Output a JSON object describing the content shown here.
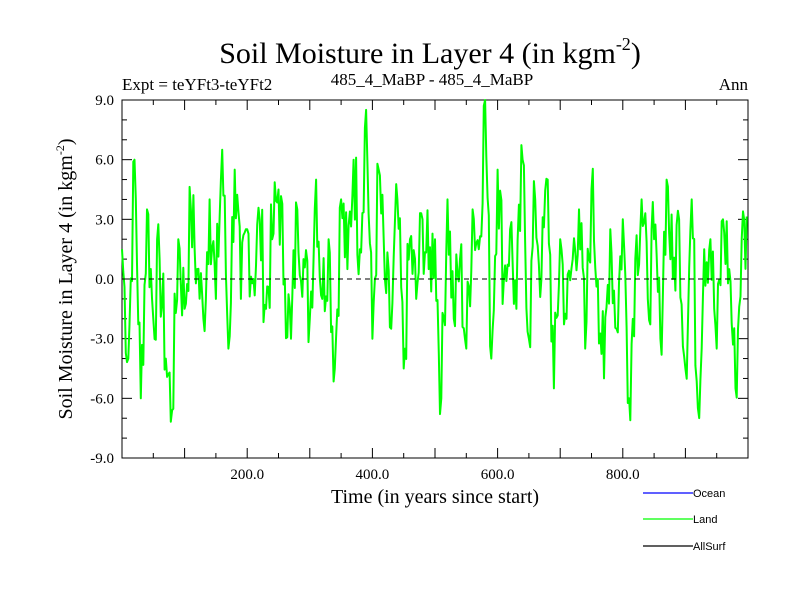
{
  "chart_data": {
    "type": "line",
    "title": "Soil Moisture in Layer 4 (in kgm",
    "title_superscript": "-2",
    "title_close": ")",
    "subtitle_left": "Expt = teYFt3-teYFt2",
    "subtitle_center": "485_4_MaBP - 485_4_MaBP",
    "subtitle_right": "Ann",
    "xlabel": "Time (in years since start)",
    "ylabel": "Soil Moisture in Layer 4 (in kgm",
    "ylabel_superscript": "-2",
    "ylabel_close": ")",
    "xlim": [
      0,
      1000
    ],
    "ylim": [
      -9,
      9
    ],
    "xticks": [
      200,
      400,
      600,
      800
    ],
    "xtick_labels": [
      "200.0",
      "400.0",
      "600.0",
      "800.0"
    ],
    "yticks": [
      9,
      6,
      3,
      0,
      -3,
      -6,
      -9
    ],
    "ytick_labels": [
      "9.0",
      "6.0",
      "3.0",
      "0.0",
      "-3.0",
      "-6.0",
      "-9.0"
    ],
    "reference_line_y": 0,
    "legend_position": "bottom-right",
    "series": [
      {
        "name": "Ocean",
        "color": "#0000ff",
        "values": []
      },
      {
        "name": "Land",
        "color": "#00ff00",
        "x_start": 0,
        "x_step": 10,
        "values": [
          1.5,
          -4.0,
          6.0,
          -6.0,
          3.5,
          -2.0,
          1.0,
          -4.0,
          -6.6,
          2.0,
          -1.5,
          3.5,
          0.5,
          -2.0,
          4.0,
          -1.0,
          6.5,
          -3.5,
          5.5,
          -1.0,
          2.5,
          0.0,
          3.0,
          -1.5,
          2.0,
          4.5,
          0.0,
          -3.0,
          3.5,
          1.0,
          -2.0,
          5.0,
          -1.0,
          2.0,
          -4.5,
          4.0,
          0.5,
          6.0,
          1.5,
          8.5,
          -3.0,
          5.5,
          0.0,
          -2.5,
          4.0,
          -4.5,
          2.0,
          -1.0,
          3.0,
          0.5,
          2.0,
          -6.0,
          4.0,
          -2.0,
          1.0,
          -3.5,
          3.5,
          1.5,
          9.0,
          -4.0,
          5.5,
          0.0,
          2.5,
          -1.5,
          6.0,
          -3.0,
          4.0,
          0.0,
          5.0,
          -5.5,
          2.0,
          -2.0,
          1.0,
          3.5,
          -3.5,
          4.5,
          0.0,
          -5.0,
          2.5,
          -2.5,
          3.0,
          -6.0,
          1.0,
          4.0,
          -1.0,
          2.0,
          -3.0,
          5.0,
          0.0,
          3.0,
          -4.5,
          4.0,
          -6.5,
          1.5,
          2.0,
          -3.5,
          3.0,
          0.5,
          -5.5,
          2.0
        ]
      },
      {
        "name": "AllSurf",
        "color": "#000000",
        "values": []
      }
    ]
  }
}
